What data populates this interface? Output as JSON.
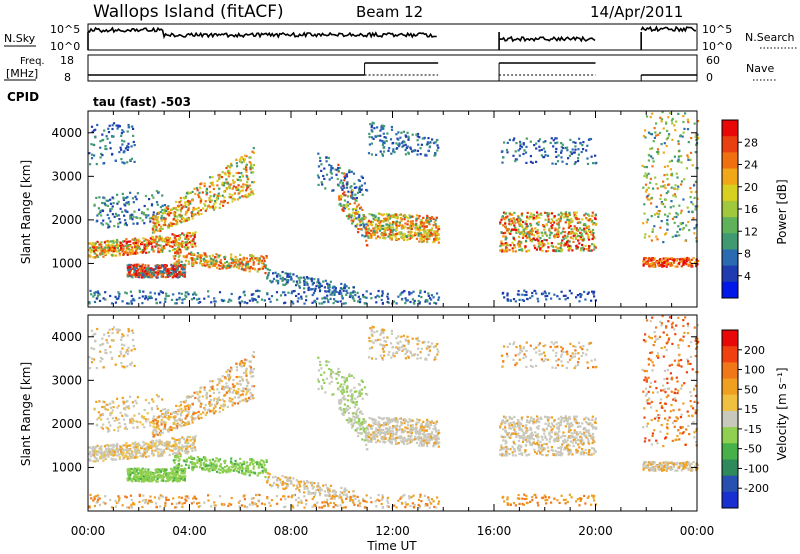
{
  "header": {
    "station": "Wallops Island (fitACF)",
    "beam": "Beam 12",
    "date": "14/Apr/2011"
  },
  "nsky_panel": {
    "left_label": "N.Sky",
    "left_ticks": [
      "10^5",
      "10^0"
    ],
    "right_ticks": [
      "10^5",
      "10^0"
    ],
    "right_label": "N.Search"
  },
  "freq_panel": {
    "left_label_line1": "Freq.",
    "left_label_line2": "[MHz]",
    "left_ticks": [
      "18",
      "8"
    ],
    "right_ticks": [
      "60",
      "0"
    ],
    "right_label": "Nave",
    "cpid_label": "CPID",
    "cpid_value": "tau (fast) -503"
  },
  "chart_data": [
    {
      "type": "heatmap",
      "name": "power",
      "ylabel": "Slant Range [km]",
      "ylim": [
        0,
        4500
      ],
      "yticks": [
        "1000",
        "2000",
        "3000",
        "4000"
      ],
      "colorbar_label": "Power [dB]",
      "colorbar_ticks": [
        "4",
        "8",
        "12",
        "16",
        "20",
        "24",
        "28"
      ],
      "colors": [
        "#0018e8",
        "#1e3cb0",
        "#2a6ab0",
        "#3f9a72",
        "#5fb25a",
        "#9fc83c",
        "#d8d020",
        "#f0a818",
        "#f07010",
        "#e84010",
        "#e80808"
      ]
    },
    {
      "type": "heatmap",
      "name": "velocity",
      "ylabel": "Slant Range [km]",
      "ylim": [
        0,
        4500
      ],
      "yticks": [
        "1000",
        "2000",
        "3000",
        "4000"
      ],
      "colorbar_label": "Velocity [m s⁻¹]",
      "colorbar_ticks": [
        "200",
        "100",
        "50",
        "15",
        "-15",
        "-50",
        "-100",
        "-200"
      ],
      "colors": [
        "#1830d0",
        "#2850b0",
        "#2e8a5a",
        "#48b048",
        "#90d050",
        "#c8c8bc",
        "#f0c040",
        "#f0a020",
        "#f07818",
        "#f04010",
        "#e80808"
      ]
    }
  ],
  "xaxis": {
    "ticks": [
      "00:00",
      "04:00",
      "08:00",
      "12:00",
      "16:00",
      "20:00",
      "00:00"
    ],
    "label": "Time UT"
  }
}
